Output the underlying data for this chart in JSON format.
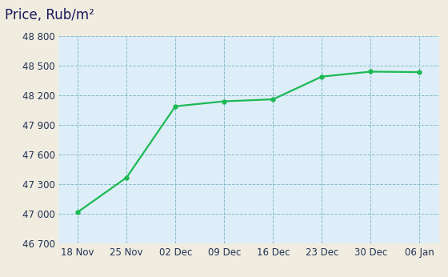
{
  "title": "Price, Rub/m²",
  "x_labels": [
    "18 Nov",
    "25 Nov",
    "02 Dec",
    "09 Dec",
    "16 Dec",
    "23 Dec",
    "30 Dec",
    "06 Jan"
  ],
  "y_values": [
    47020,
    47370,
    48090,
    48140,
    48160,
    48390,
    48440,
    48435
  ],
  "y_ticks": [
    46700,
    47000,
    47300,
    47600,
    47900,
    48200,
    48500,
    48800
  ],
  "y_tick_labels": [
    "46 700",
    "47 000",
    "47 300",
    "47 600",
    "47 900",
    "48 200",
    "48 500",
    "48 800"
  ],
  "line_color": "#1db954",
  "marker_color": "#1db954",
  "bg_outer": "#f0ece0",
  "bg_plot": "#ddeef8",
  "grid_color": "#88bbcc",
  "title_color": "#1a1a5c",
  "tick_color": "#223355",
  "ylim": [
    46700,
    48800
  ],
  "marker_size": 4,
  "line_width": 1.6,
  "title_fontsize": 12,
  "tick_fontsize": 8.5
}
